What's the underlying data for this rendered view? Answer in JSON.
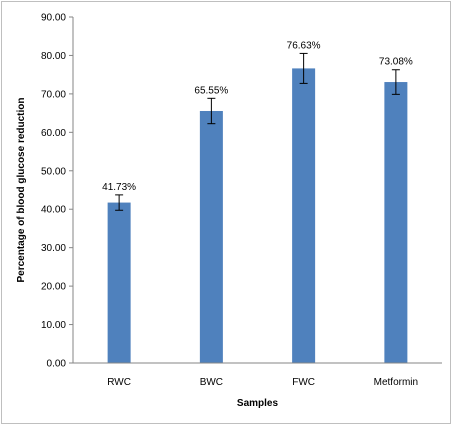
{
  "chart_data": {
    "type": "bar",
    "title": "",
    "xlabel": "Samples",
    "ylabel": "Percentage of blood glucose reduction",
    "categories": [
      "RWC",
      "BWC",
      "FWC",
      "Metformin"
    ],
    "values": [
      41.73,
      65.55,
      76.63,
      73.08
    ],
    "error": [
      2.0,
      3.3,
      3.9,
      3.2
    ],
    "data_labels": [
      "41.73%",
      "65.55%",
      "76.63%",
      "73.08%"
    ],
    "ylim": [
      0,
      90
    ],
    "ytick_step": 10,
    "ytick_labels": [
      "0.00",
      "10.00",
      "20.00",
      "30.00",
      "40.00",
      "50.00",
      "60.00",
      "70.00",
      "80.00",
      "90.00"
    ],
    "grid": false,
    "legend": "none",
    "bar_color": "#4f81bd"
  }
}
